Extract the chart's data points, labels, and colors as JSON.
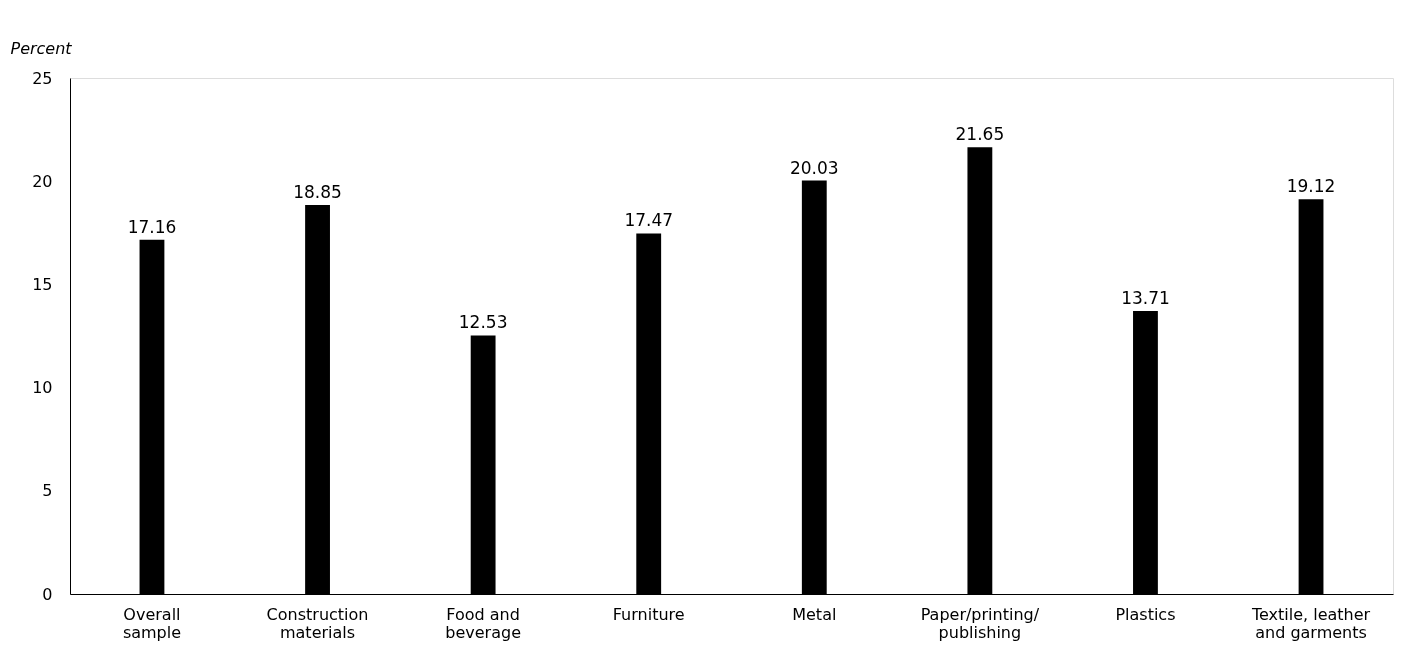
{
  "chart_data": {
    "type": "bar",
    "ylabel": "Percent",
    "categories": [
      "Overall\nsample",
      "Construction\nmaterials",
      "Food and\nbeverage",
      "Furniture",
      "Metal",
      "Paper/printing/\npublishing",
      "Plastics",
      "Textile, leather\nand garments"
    ],
    "values": [
      17.16,
      18.85,
      12.53,
      17.47,
      20.03,
      21.65,
      13.71,
      19.12
    ],
    "color": "#000000",
    "ylim": [
      0,
      25
    ],
    "yticks": [
      0,
      5,
      10,
      15,
      20,
      25
    ],
    "grid": false,
    "data_labels": true
  }
}
